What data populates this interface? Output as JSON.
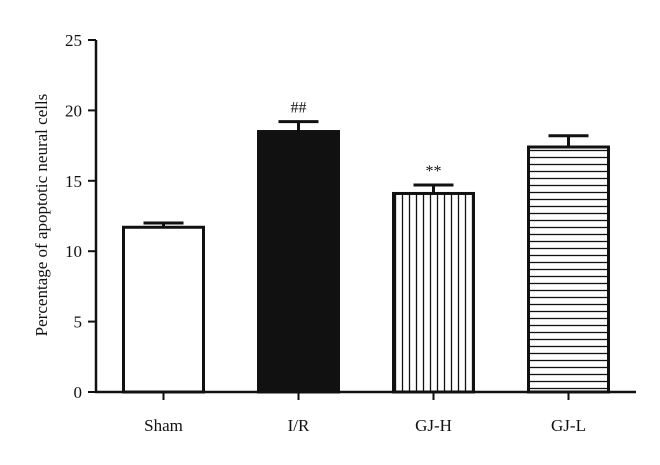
{
  "chart_data": {
    "type": "bar",
    "title": "",
    "xlabel": "",
    "ylabel": "Percentage of apoptotic neural cells",
    "ylim": [
      0,
      25
    ],
    "yticks": [
      0,
      5,
      10,
      15,
      20,
      25
    ],
    "grid": false,
    "categories": [
      "Sham",
      "I/R",
      "GJ-H",
      "GJ-L"
    ],
    "values": [
      11.7,
      18.5,
      14.1,
      17.4
    ],
    "errors": [
      0.3,
      0.7,
      0.6,
      0.8
    ],
    "fills": [
      "open",
      "solid",
      "vertical-stripes",
      "horizontal-stripes"
    ],
    "annotations": [
      "",
      "##",
      "**",
      ""
    ],
    "colors": {
      "stroke": "#111111",
      "solid_fill": "#111111",
      "background": "#ffffff"
    }
  }
}
